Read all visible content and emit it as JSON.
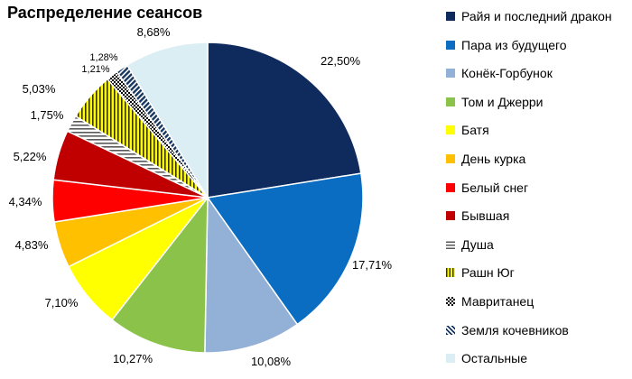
{
  "chart_data": {
    "type": "pie",
    "title": "Распределение сеансов",
    "series": [
      {
        "name": "Райя и последний дракон",
        "value": 22.5,
        "label": "22,50%",
        "color": "#0f2a5c",
        "pattern": "solid"
      },
      {
        "name": "Пара из будущего",
        "value": 17.71,
        "label": "17,71%",
        "color": "#0a6dc1",
        "pattern": "solid"
      },
      {
        "name": "Конёк-Горбунок",
        "value": 10.08,
        "label": "10,08%",
        "color": "#93b0d6",
        "pattern": "solid"
      },
      {
        "name": "Том и Джерри",
        "value": 10.27,
        "label": "10,27%",
        "color": "#8bc34a",
        "pattern": "solid"
      },
      {
        "name": "Батя",
        "value": 7.1,
        "label": "7,10%",
        "color": "#ffff00",
        "pattern": "solid"
      },
      {
        "name": "День курка",
        "value": 4.83,
        "label": "4,83%",
        "color": "#ffc000",
        "pattern": "solid"
      },
      {
        "name": "Белый снег",
        "value": 4.34,
        "label": "4,34%",
        "color": "#ff0000",
        "pattern": "solid"
      },
      {
        "name": "Бывшая",
        "value": 5.22,
        "label": "5,22%",
        "color": "#c00000",
        "pattern": "solid"
      },
      {
        "name": "Душа",
        "value": 1.75,
        "label": "1,75%",
        "color": "#595959",
        "pattern": "horizontal-stripes"
      },
      {
        "name": "Рашн Юг",
        "value": 5.03,
        "label": "5,03%",
        "color": "#c8b400",
        "pattern": "vertical-stripes"
      },
      {
        "name": "Мавританец",
        "value": 1.21,
        "label": "1,21%",
        "color": "#000000",
        "pattern": "checker"
      },
      {
        "name": "Земля кочевников",
        "value": 1.28,
        "label": "1,28%",
        "color": "#17375e",
        "pattern": "diagonal"
      },
      {
        "name": "Остальные",
        "value": 8.68,
        "label": "8,68%",
        "color": "#daeef3",
        "pattern": "solid"
      }
    ]
  }
}
